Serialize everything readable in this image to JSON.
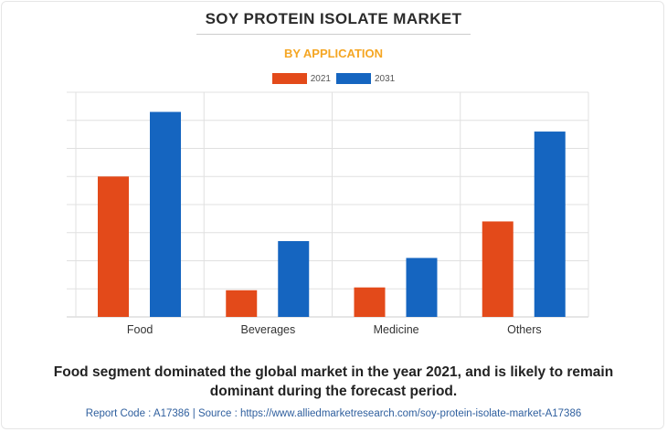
{
  "title": "SOY PROTEIN ISOLATE MARKET",
  "subtitle": "BY APPLICATION",
  "caption": "Food segment dominated the global market in the year 2021, and is likely to remain dominant during the forecast period.",
  "footer": "Report Code : A17386  |  Source : https://www.alliedmarketresearch.com/soy-protein-isolate-market-A17386",
  "colors": {
    "series_2021": "#e34a1a",
    "series_2031": "#1565c0",
    "subtitle": "#f5a623",
    "grid": "#e0e0e0"
  },
  "chart_data": {
    "type": "bar",
    "title": "SOY PROTEIN ISOLATE MARKET",
    "subtitle": "BY APPLICATION",
    "categories": [
      "Food",
      "Beverages",
      "Medicine",
      "Others"
    ],
    "series": [
      {
        "name": "2021",
        "values": [
          5.0,
          0.95,
          1.05,
          3.4
        ]
      },
      {
        "name": "2031",
        "values": [
          7.3,
          2.7,
          2.1,
          6.6
        ]
      }
    ],
    "ylim": [
      0,
      8
    ],
    "grid": true,
    "legend": "top-center",
    "xlabel": "",
    "ylabel": ""
  }
}
